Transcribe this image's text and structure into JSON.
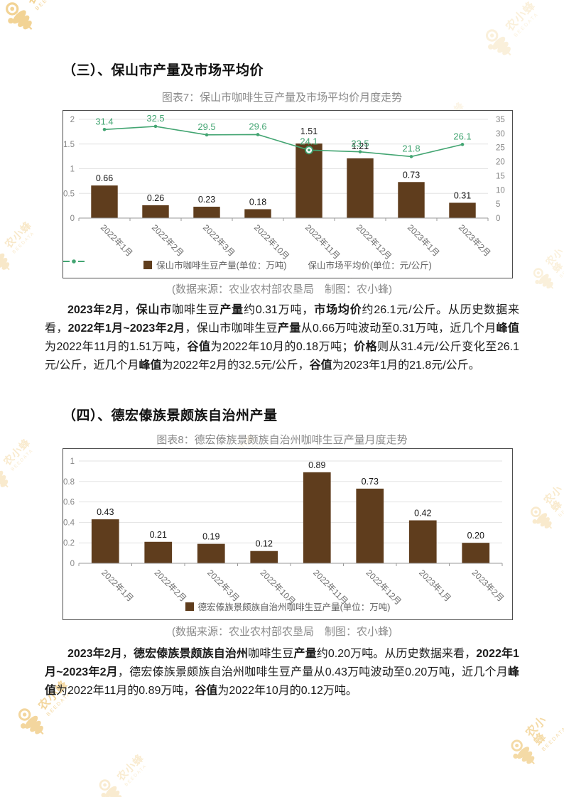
{
  "page": {
    "watermark": {
      "brand": "农小蜂",
      "sub": "BEEDATA"
    }
  },
  "sections": [
    {
      "heading": "（三）、保山市产量及市场平均价",
      "source_note": "(数据来源：农业农村部农垦局　制图：农小蜂)",
      "paragraph": [
        {
          "b": 1,
          "t": "2023年2月"
        },
        {
          "b": 0,
          "t": "，"
        },
        {
          "b": 1,
          "t": "保山市"
        },
        {
          "b": 0,
          "t": "咖啡生豆"
        },
        {
          "b": 1,
          "t": "产量"
        },
        {
          "b": 0,
          "t": "约0.31万吨，"
        },
        {
          "b": 1,
          "t": "市场均价"
        },
        {
          "b": 0,
          "t": "约26.1元/公斤。从历史数据来看，"
        },
        {
          "b": 1,
          "t": "2022年1月~2023年2月"
        },
        {
          "b": 0,
          "t": "，保山市咖啡生豆"
        },
        {
          "b": 1,
          "t": "产量"
        },
        {
          "b": 0,
          "t": "从0.66万吨波动至0.31万吨，近几个月"
        },
        {
          "b": 1,
          "t": "峰值"
        },
        {
          "b": 0,
          "t": "为2022年11月的1.51万吨，"
        },
        {
          "b": 1,
          "t": "谷值"
        },
        {
          "b": 0,
          "t": "为2022年10月的0.18万吨；"
        },
        {
          "b": 1,
          "t": "价格"
        },
        {
          "b": 0,
          "t": "则从31.4元/公斤变化至26.1元/公斤，近几个月"
        },
        {
          "b": 1,
          "t": "峰值"
        },
        {
          "b": 0,
          "t": "为2022年2月的32.5元/公斤，"
        },
        {
          "b": 1,
          "t": "谷值"
        },
        {
          "b": 0,
          "t": "为2023年1月的21.8元/公斤。"
        }
      ]
    },
    {
      "heading": "（四）、德宏傣族景颇族自治州产量",
      "source_note": "(数据来源：农业农村部农垦局　制图：农小蜂)",
      "paragraph": [
        {
          "b": 1,
          "t": "2023年2月"
        },
        {
          "b": 0,
          "t": "，"
        },
        {
          "b": 1,
          "t": "德宏傣族景颇族自治州"
        },
        {
          "b": 0,
          "t": "咖啡生豆"
        },
        {
          "b": 1,
          "t": "产量"
        },
        {
          "b": 0,
          "t": "约0.20万吨。从历史数据来看，"
        },
        {
          "b": 1,
          "t": "2022年1月~2023年2月"
        },
        {
          "b": 0,
          "t": "，德宏傣族景颇族自治州咖啡生豆产量从0.43万吨波动至0.20万吨，近几个月"
        },
        {
          "b": 1,
          "t": "峰值"
        },
        {
          "b": 0,
          "t": "为2022年11月的0.89万吨，"
        },
        {
          "b": 1,
          "t": "谷值"
        },
        {
          "b": 0,
          "t": "为2022年10月的0.12万吨。"
        }
      ]
    }
  ],
  "chart_data": [
    {
      "type": "bar+line",
      "title": "图表7：保山市咖啡生豆产量及市场平均价月度走势",
      "categories": [
        "2022年1月",
        "2022年2月",
        "2022年3月",
        "2022年10月",
        "2022年11月",
        "2022年12月",
        "2023年1月",
        "2023年2月"
      ],
      "series": [
        {
          "type": "bar",
          "name": "保山市咖啡生豆产量(单位：万吨)",
          "axis": "left",
          "color": "#5f3d1d",
          "values": [
            0.66,
            0.26,
            0.23,
            0.18,
            1.51,
            1.21,
            0.73,
            0.31
          ],
          "labels": [
            "0.66",
            "0.26",
            "0.23",
            "0.18",
            "1.51",
            "1.21",
            "0.73",
            "0.31"
          ]
        },
        {
          "type": "line",
          "name": "保山市场平均价(单位：元/公斤)",
          "axis": "right",
          "color": "#43a572",
          "values": [
            31.4,
            32.5,
            29.5,
            29.6,
            24.1,
            23.5,
            21.8,
            26.1
          ],
          "labels": [
            "31.4",
            "32.5",
            "29.5",
            "29.6",
            "24.1",
            "23.5",
            "21.8",
            "26.1"
          ],
          "emphasis_index": 4
        }
      ],
      "left_axis": {
        "min": 0,
        "max": 2,
        "ticks": [
          "0",
          "0.5",
          "1",
          "1.5",
          "2"
        ]
      },
      "right_axis": {
        "min": 0,
        "max": 35,
        "ticks": [
          "0",
          "5",
          "10",
          "15",
          "20",
          "25",
          "30",
          "35"
        ]
      },
      "grid": true,
      "legend_position": "bottom"
    },
    {
      "type": "bar",
      "title": "图表8：德宏傣族景颇族自治州咖啡生豆产量月度走势",
      "categories": [
        "2022年1月",
        "2022年2月",
        "2022年3月",
        "2022年10月",
        "2022年11月",
        "2022年12月",
        "2023年1月",
        "2023年2月"
      ],
      "series": [
        {
          "type": "bar",
          "name": "德宏傣族景颇族自治州咖啡生豆产量(单位：万吨)",
          "axis": "left",
          "color": "#5f3d1d",
          "values": [
            0.43,
            0.21,
            0.19,
            0.12,
            0.89,
            0.73,
            0.42,
            0.2
          ],
          "labels": [
            "0.43",
            "0.21",
            "0.19",
            "0.12",
            "0.89",
            "0.73",
            "0.42",
            "0.20"
          ]
        }
      ],
      "left_axis": {
        "min": 0,
        "max": 1,
        "ticks": [
          "0",
          "0.2",
          "0.4",
          "0.6",
          "0.8",
          "1"
        ]
      },
      "grid": true,
      "legend_position": "bottom"
    }
  ]
}
